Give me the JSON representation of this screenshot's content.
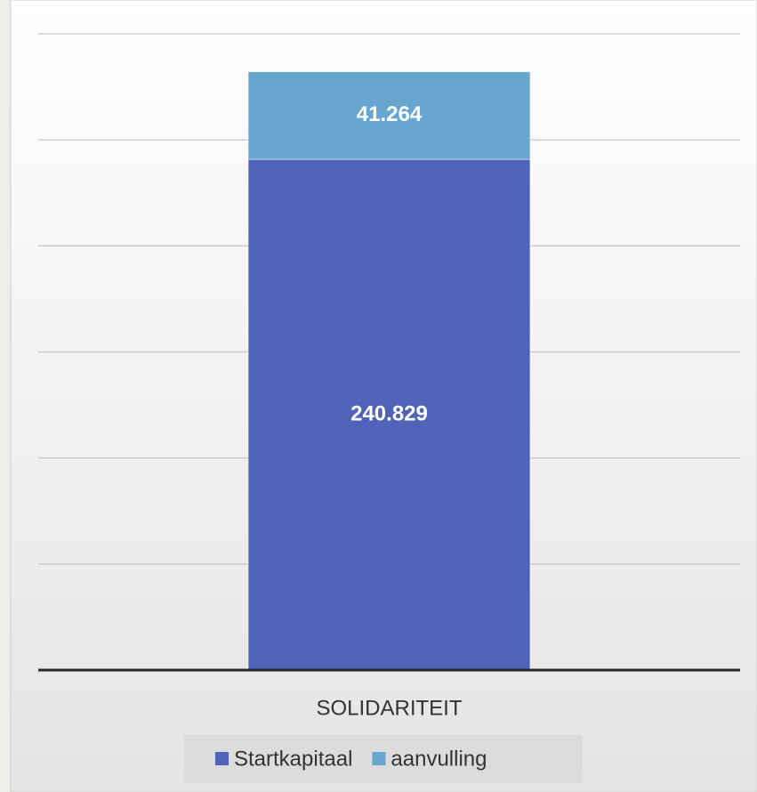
{
  "chart_data": {
    "type": "stacked_bar",
    "categories": [
      "SOLIDARITEIT"
    ],
    "series": [
      {
        "name": "Startkapitaal",
        "color": "#4f63b9",
        "values": [
          240829
        ],
        "value_labels": [
          "240.829"
        ]
      },
      {
        "name": "aanvulling",
        "color": "#66a6cf",
        "values": [
          41264
        ],
        "value_labels": [
          "41.264"
        ]
      }
    ],
    "ylim": [
      0,
      300000
    ],
    "yticks": [
      0,
      50000,
      100000,
      150000,
      200000,
      250000,
      300000
    ],
    "grid": true,
    "legend": "bottom"
  }
}
